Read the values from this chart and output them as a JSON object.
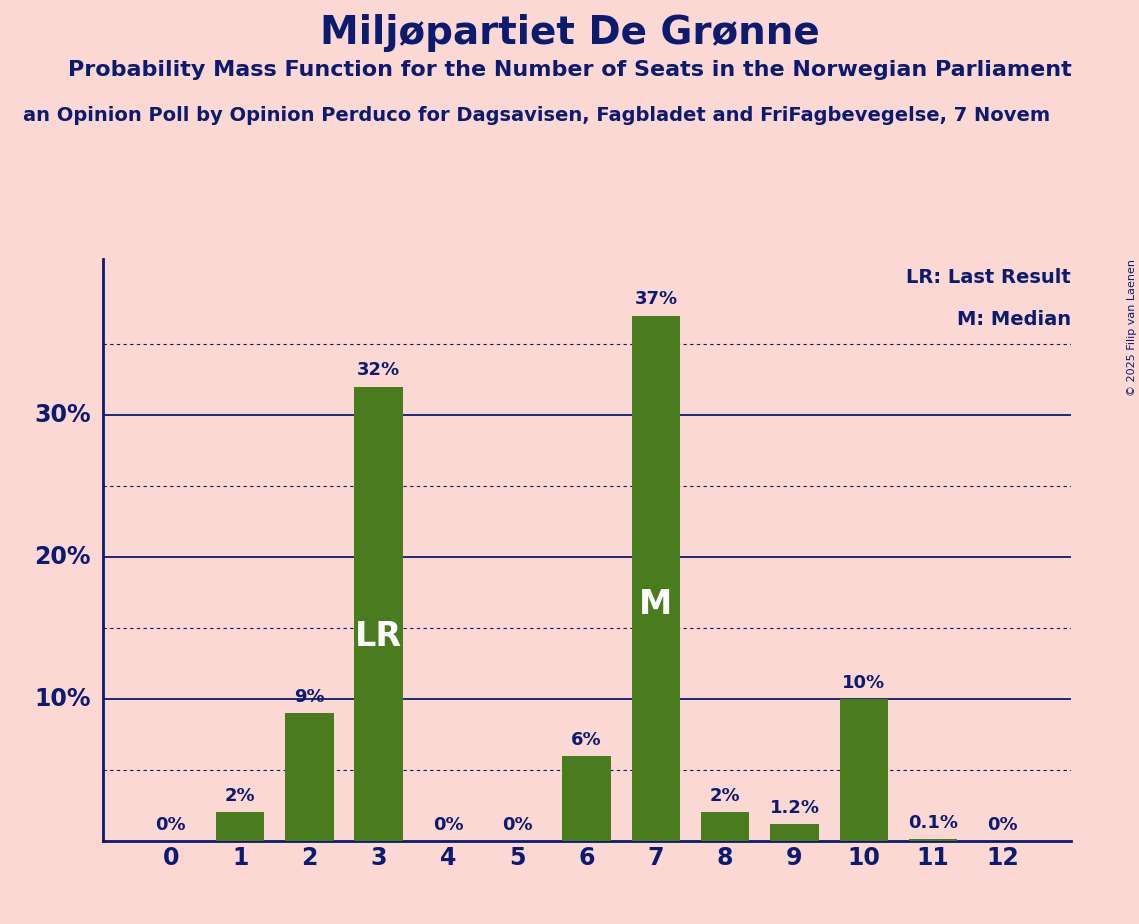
{
  "title": "Miljøpartiet De Grønne",
  "subtitle": "Probability Mass Function for the Number of Seats in the Norwegian Parliament",
  "source_line": "an Opinion Poll by Opinion Perduco for Dagsavisen, Fagbladet and FriFagbevegelse, 7 Novem",
  "copyright": "© 2025 Filip van Laenen",
  "categories": [
    0,
    1,
    2,
    3,
    4,
    5,
    6,
    7,
    8,
    9,
    10,
    11,
    12
  ],
  "values": [
    0.0,
    2.0,
    9.0,
    32.0,
    0.0,
    0.0,
    6.0,
    37.0,
    2.0,
    1.2,
    10.0,
    0.1,
    0.0
  ],
  "bar_color": "#4a7c1f",
  "background_color": "#fcd8d4",
  "text_color": "#0d1b6e",
  "ylim": [
    0,
    41
  ],
  "lr_bar": 3,
  "median_bar": 7,
  "legend_lr": "LR: Last Result",
  "legend_m": "M: Median",
  "bar_labels": [
    "0%",
    "2%",
    "9%",
    "32%",
    "0%",
    "0%",
    "6%",
    "37%",
    "2%",
    "1.2%",
    "10%",
    "0.1%",
    "0%"
  ],
  "solid_gridlines": [
    10,
    20,
    30
  ],
  "dotted_gridlines": [
    5,
    15,
    25,
    35
  ]
}
